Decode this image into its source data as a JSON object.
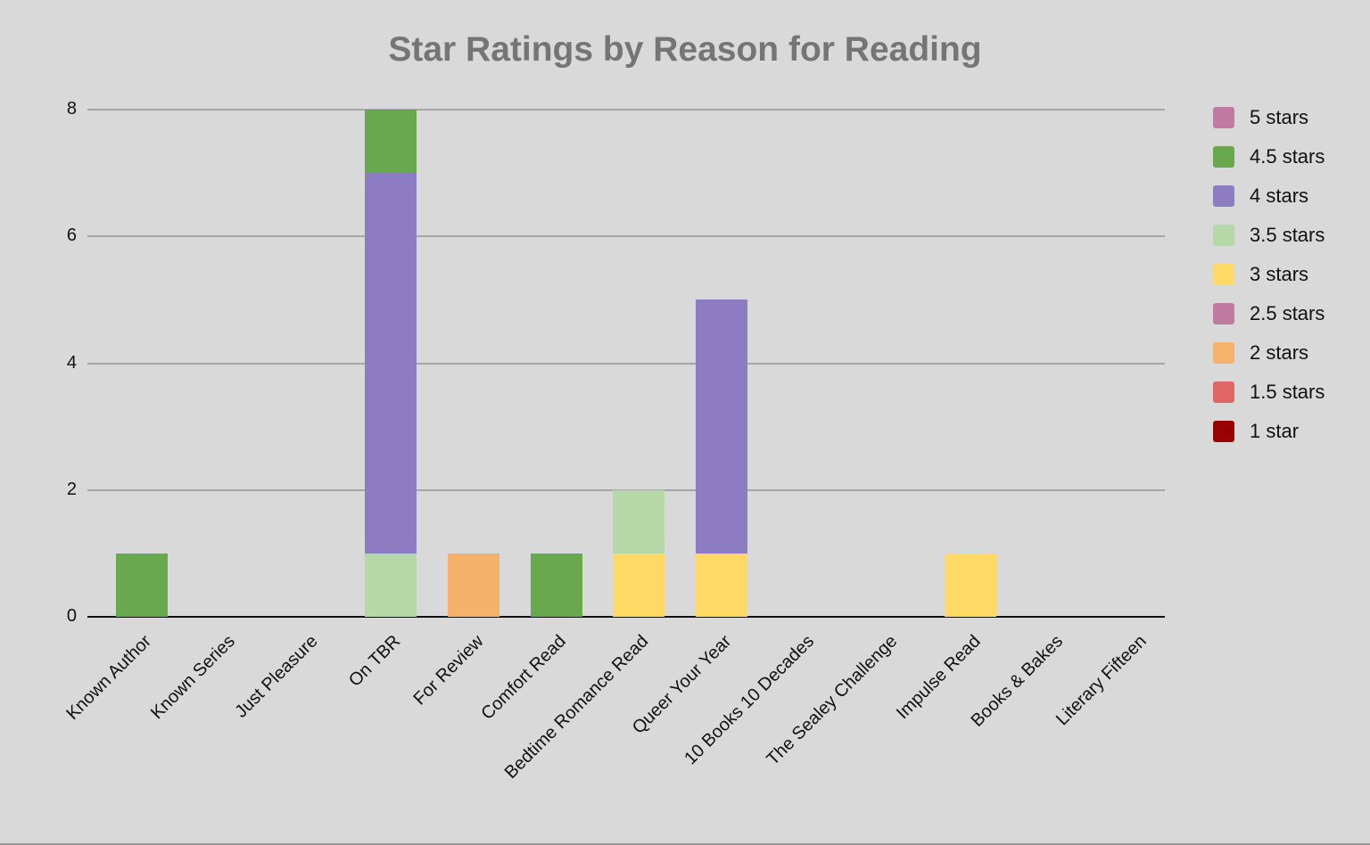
{
  "chart_data": {
    "type": "bar",
    "stacked": true,
    "title": "Star Ratings by Reason for Reading",
    "xlabel": "",
    "ylabel": "",
    "ylim": [
      0,
      8
    ],
    "yticks": [
      "0",
      "2",
      "4",
      "6",
      "8"
    ],
    "grid": true,
    "legend_position": "right",
    "categories": [
      "Known Author",
      "Known Series",
      "Just Pleasure",
      "On TBR",
      "For Review",
      "Comfort Read",
      "Bedtime Romance Read",
      "Queer Your Year",
      "10 Books 10 Decades",
      "The Sealey Challenge",
      "Impulse Read",
      "Books & Bakes",
      "Literary Fifteen"
    ],
    "series": [
      {
        "name": "1 star",
        "color": "#990000",
        "values": [
          0,
          0,
          0,
          0,
          0,
          0,
          0,
          0,
          0,
          0,
          0,
          0,
          0
        ]
      },
      {
        "name": "1.5 stars",
        "color": "#e06666",
        "values": [
          0,
          0,
          0,
          0,
          0,
          0,
          0,
          0,
          0,
          0,
          0,
          0,
          0
        ]
      },
      {
        "name": "2 stars",
        "color": "#f6b26b",
        "values": [
          0,
          0,
          0,
          0,
          1,
          0,
          0,
          0,
          0,
          0,
          0,
          0,
          0
        ]
      },
      {
        "name": "2.5 stars",
        "color": "#c27ba0",
        "values": [
          0,
          0,
          0,
          0,
          0,
          0,
          0,
          0,
          0,
          0,
          0,
          0,
          0
        ]
      },
      {
        "name": "3 stars",
        "color": "#ffd966",
        "values": [
          0,
          0,
          0,
          0,
          0,
          0,
          1,
          1,
          0,
          0,
          1,
          0,
          0
        ]
      },
      {
        "name": "3.5 stars",
        "color": "#b6d7a8",
        "values": [
          0,
          0,
          0,
          1,
          0,
          0,
          1,
          0,
          0,
          0,
          0,
          0,
          0
        ]
      },
      {
        "name": "4 stars",
        "color": "#8e7cc3",
        "values": [
          0,
          0,
          0,
          6,
          0,
          0,
          0,
          4,
          0,
          0,
          0,
          0,
          0
        ]
      },
      {
        "name": "4.5 stars",
        "color": "#6aa84f",
        "values": [
          1,
          0,
          0,
          1,
          0,
          1,
          0,
          0,
          0,
          0,
          0,
          0,
          0
        ]
      },
      {
        "name": "5 stars",
        "color": "#c27ba0",
        "values": [
          0,
          0,
          0,
          0,
          0,
          0,
          0,
          0,
          0,
          0,
          0,
          0,
          0
        ]
      }
    ]
  },
  "legend": {
    "items": [
      {
        "label": "5 stars",
        "color": "#c27ba0"
      },
      {
        "label": "4.5 stars",
        "color": "#6aa84f"
      },
      {
        "label": "4 stars",
        "color": "#8e7cc3"
      },
      {
        "label": "3.5 stars",
        "color": "#b6d7a8"
      },
      {
        "label": "3 stars",
        "color": "#ffd966"
      },
      {
        "label": "2.5 stars",
        "color": "#c27ba0"
      },
      {
        "label": "2 stars",
        "color": "#f6b26b"
      },
      {
        "label": "1.5 stars",
        "color": "#e06666"
      },
      {
        "label": "1 star",
        "color": "#990000"
      }
    ]
  },
  "colors": {
    "background": "#d9d9d9",
    "title": "#757575",
    "gridline": "#a6a6a6",
    "axis": "#111111"
  }
}
